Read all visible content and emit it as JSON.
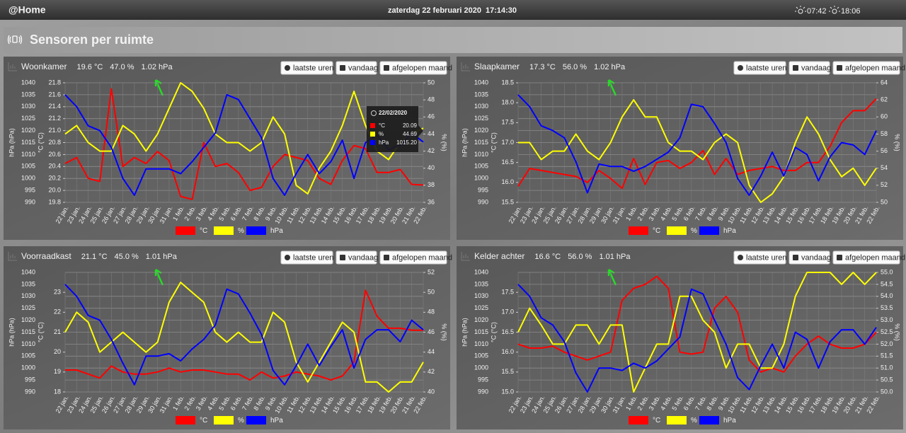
{
  "header": {
    "title": "@Home",
    "date": "zaterdag 22 februari 2020",
    "time": "17:14:30",
    "sunrise": "07:42",
    "sunset": "18:06"
  },
  "section": {
    "title": "Sensoren per ruimte"
  },
  "chart_data": [
    {
      "type": "line",
      "title": "Woonkamer",
      "readings": [
        "19.6 °C",
        "47.0 %",
        "1.02 hPa"
      ],
      "buttons": [
        "laatste uren",
        "vandaag",
        "afgelopen maand"
      ],
      "categories": [
        "22 jan.",
        "23 jan.",
        "24 jan.",
        "25 jan.",
        "26 jan.",
        "27 jan.",
        "28 jan.",
        "29 jan.",
        "30 jan.",
        "31 jan.",
        "1 feb.",
        "2 feb.",
        "3 feb.",
        "4 feb.",
        "5 feb.",
        "6 feb.",
        "7 feb.",
        "8 feb.",
        "9 feb.",
        "10 feb.",
        "11 feb.",
        "12 feb.",
        "13 feb.",
        "14 feb.",
        "15 feb.",
        "16 feb.",
        "17 feb.",
        "18 feb.",
        "19 feb.",
        "20 feb.",
        "21 feb.",
        "22 feb."
      ],
      "ylabel": "hPa (hPa)",
      "ylim": [
        990,
        1040
      ],
      "yticks": [
        990,
        995,
        1000,
        1005,
        1010,
        1015,
        1020,
        1025,
        1030,
        1035,
        1040
      ],
      "y3label": "°C (°C)",
      "y3lim": [
        19.8,
        21.8
      ],
      "y3ticks": [
        19.8,
        {
          "value": 20,
          "label": "20.0"
        },
        20.2,
        20.4,
        20.6,
        20.8,
        {
          "value": 21,
          "label": "21.0"
        },
        21.2,
        21.4,
        21.6,
        21.8
      ],
      "y2label": "% (%)",
      "y2lim": [
        36,
        50
      ],
      "y2ticks": [
        36,
        38,
        40,
        42,
        44,
        46,
        48,
        50
      ],
      "grid": true,
      "series": [
        {
          "name": "°C",
          "color": "#ff0000",
          "axis": "y3",
          "values": [
            20.45,
            20.55,
            20.2,
            20.15,
            21.7,
            20.4,
            20.55,
            20.45,
            20.65,
            20.5,
            19.9,
            19.85,
            20.8,
            20.4,
            20.45,
            20.3,
            20.0,
            20.05,
            20.4,
            20.6,
            20.55,
            20.5,
            20.2,
            20.1,
            20.5,
            20.75,
            20.7,
            20.3,
            20.3,
            20.35,
            20.1,
            20.09
          ]
        },
        {
          "name": "%",
          "color": "#ffff00",
          "axis": "y2",
          "values": [
            44,
            45,
            43,
            42,
            42,
            45,
            44,
            42,
            44,
            47,
            50,
            49,
            47,
            44,
            43,
            43,
            42,
            43,
            46,
            44,
            38,
            37,
            40,
            42,
            45,
            49,
            45,
            42,
            41,
            43,
            44,
            44.69
          ]
        },
        {
          "name": "hPa",
          "color": "#0000ff",
          "axis": "y",
          "values": [
            1035,
            1030,
            1022,
            1020,
            1013,
            1000,
            993,
            1004,
            1004,
            1004,
            1002,
            1007,
            1013,
            1019,
            1035,
            1033,
            1025,
            1017,
            1000,
            993,
            1002,
            1010,
            1002,
            1007,
            1016,
            1000,
            1015,
            1018,
            1012,
            1014,
            1019,
            1015.2
          ]
        }
      ],
      "tooltip": {
        "date": "22/02/2020",
        "rows": [
          {
            "name": "°C",
            "value": "20.09"
          },
          {
            "name": "%",
            "value": "44.69"
          },
          {
            "name": "hPa",
            "value": "1015.20"
          }
        ]
      }
    },
    {
      "type": "line",
      "title": "Slaapkamer",
      "readings": [
        "17.3 °C",
        "56.0 %",
        "1.02 hPa"
      ],
      "buttons": [
        "laatste uren",
        "vandaag",
        "afgelopen maand"
      ],
      "categories": [
        "22 jan.",
        "23 jan.",
        "24 jan.",
        "25 jan.",
        "26 jan.",
        "27 jan.",
        "28 jan.",
        "29 jan.",
        "30 jan.",
        "31 jan.",
        "1 feb.",
        "2 feb.",
        "3 feb.",
        "4 feb.",
        "5 feb.",
        "6 feb.",
        "7 feb.",
        "8 feb.",
        "9 feb.",
        "10 feb.",
        "11 feb.",
        "12 feb.",
        "13 feb.",
        "14 feb.",
        "15 feb.",
        "16 feb.",
        "17 feb.",
        "18 feb.",
        "19 feb.",
        "20 feb.",
        "21 feb.",
        "22 feb."
      ],
      "ylabel": "hPa (hPa)",
      "ylim": [
        990,
        1040
      ],
      "yticks": [
        990,
        995,
        1000,
        1005,
        1010,
        1015,
        1020,
        1025,
        1030,
        1035,
        1040
      ],
      "y3label": "°C (°C)",
      "y3lim": [
        15.5,
        18.5
      ],
      "y3ticks": [
        15.5,
        {
          "value": 16,
          "label": "16.0"
        },
        16.5,
        {
          "value": 17,
          "label": "17.0"
        },
        17.5,
        {
          "value": 18,
          "label": "18.0"
        },
        18.5
      ],
      "y2label": "% (%)",
      "y2lim": [
        50,
        64
      ],
      "y2ticks": [
        50,
        52,
        54,
        56,
        58,
        60,
        62,
        64
      ],
      "grid": true,
      "series": [
        {
          "name": "°C",
          "color": "#ff0000",
          "axis": "y3",
          "values": [
            15.9,
            16.35,
            16.3,
            16.25,
            16.2,
            16.15,
            16.0,
            16.3,
            16.1,
            15.85,
            16.6,
            15.95,
            16.5,
            16.55,
            16.35,
            16.5,
            16.8,
            16.2,
            16.6,
            16.2,
            16.3,
            16.35,
            16.4,
            16.3,
            16.3,
            16.5,
            16.5,
            16.9,
            17.5,
            17.8,
            17.8,
            18.1
          ]
        },
        {
          "name": "%",
          "color": "#ffff00",
          "axis": "y2",
          "values": [
            57,
            57,
            55,
            56,
            56,
            58,
            56,
            55,
            57,
            60,
            62,
            60,
            60,
            57,
            56,
            56,
            55,
            57,
            58,
            57,
            52,
            50,
            51,
            53,
            57,
            60,
            58,
            55,
            53,
            54,
            52,
            54
          ]
        },
        {
          "name": "hPa",
          "color": "#0000ff",
          "axis": "y",
          "values": [
            1035,
            1030,
            1022,
            1020,
            1017,
            1007,
            994,
            1006,
            1005,
            1005,
            1003,
            1005,
            1008,
            1011,
            1017,
            1031,
            1030,
            1023,
            1015,
            1000,
            993,
            1001,
            1011,
            1001,
            1013,
            1010,
            999,
            1009,
            1015,
            1014,
            1010,
            1020
          ]
        }
      ]
    },
    {
      "type": "line",
      "title": "Voorraadkast",
      "readings": [
        "21.1 °C",
        "45.0 %",
        "1.01 hPa"
      ],
      "buttons": [
        "laatste uren",
        "vandaag",
        "afgelopen maand"
      ],
      "categories": [
        "22 jan.",
        "23 jan.",
        "24 jan.",
        "25 jan.",
        "26 jan.",
        "27 jan.",
        "28 jan.",
        "29 jan.",
        "30 jan.",
        "31 jan.",
        "1 feb.",
        "2 feb.",
        "3 feb.",
        "4 feb.",
        "5 feb.",
        "6 feb.",
        "7 feb.",
        "8 feb.",
        "9 feb.",
        "10 feb.",
        "11 feb.",
        "12 feb.",
        "13 feb.",
        "14 feb.",
        "15 feb.",
        "16 feb.",
        "17 feb.",
        "18 feb.",
        "19 feb.",
        "20 feb.",
        "21 feb.",
        "22 feb."
      ],
      "ylabel": "hPa (hPa)",
      "ylim": [
        990,
        1040
      ],
      "yticks": [
        990,
        995,
        1000,
        1005,
        1010,
        1015,
        1020,
        1025,
        1030,
        1035,
        1040
      ],
      "y3label": "°C (°C)",
      "y3lim": [
        18,
        24
      ],
      "y3ticks": [
        18,
        19,
        20,
        21,
        22,
        23
      ],
      "y2label": "% (%)",
      "y2lim": [
        40,
        52
      ],
      "y2ticks": [
        40,
        42,
        44,
        46,
        48,
        50,
        52
      ],
      "grid": true,
      "series": [
        {
          "name": "°C",
          "color": "#ff0000",
          "axis": "y3",
          "values": [
            19.1,
            19.1,
            18.9,
            18.7,
            19.3,
            19.0,
            18.9,
            18.9,
            19.0,
            19.2,
            19.0,
            19.1,
            19.1,
            19.0,
            18.9,
            18.9,
            18.6,
            19.0,
            18.7,
            18.8,
            19.0,
            18.9,
            18.8,
            18.6,
            18.8,
            19.5,
            23.1,
            21.8,
            21.2,
            21.2,
            21.1,
            21.1
          ]
        },
        {
          "name": "%",
          "color": "#ffff00",
          "axis": "y2",
          "values": [
            46,
            48,
            47,
            44,
            45,
            46,
            45,
            44,
            45,
            49,
            51,
            50,
            49,
            46,
            45,
            46,
            45,
            45,
            48,
            47,
            43,
            41,
            43,
            45,
            47,
            46,
            41,
            41,
            40,
            41,
            41,
            43
          ]
        },
        {
          "name": "hPa",
          "color": "#0000ff",
          "axis": "y",
          "values": [
            1035,
            1030,
            1022,
            1020,
            1012,
            1002,
            993,
            1005,
            1005,
            1006,
            1003,
            1008,
            1012,
            1018,
            1033,
            1031,
            1023,
            1014,
            999,
            993,
            1001,
            1010,
            1001,
            1009,
            1016,
            1000,
            1012,
            1016,
            1016,
            1011,
            1020,
            1016
          ]
        }
      ]
    },
    {
      "type": "line",
      "title": "Kelder achter",
      "readings": [
        "16.6 °C",
        "56.0 %",
        "1.01 hPa"
      ],
      "buttons": [
        "laatste uren",
        "vandaag",
        "afgelopen maand"
      ],
      "categories": [
        "22 jan.",
        "23 jan.",
        "24 jan.",
        "25 jan.",
        "26 jan.",
        "27 jan.",
        "28 jan.",
        "29 jan.",
        "30 jan.",
        "31 jan.",
        "1 feb.",
        "2 feb.",
        "3 feb.",
        "4 feb.",
        "5 feb.",
        "6 feb.",
        "7 feb.",
        "8 feb.",
        "9 feb.",
        "10 feb.",
        "11 feb.",
        "12 feb.",
        "13 feb.",
        "14 feb.",
        "15 feb.",
        "16 feb.",
        "17 feb.",
        "18 feb.",
        "19 feb.",
        "20 feb.",
        "21 feb.",
        "22 feb."
      ],
      "ylabel": "hPa (hPa)",
      "ylim": [
        990,
        1040
      ],
      "yticks": [
        990,
        995,
        1000,
        1005,
        1010,
        1015,
        1020,
        1025,
        1030,
        1035,
        1040
      ],
      "y3label": "°C (°C)",
      "y3lim": [
        15,
        18
      ],
      "y3ticks": [
        {
          "value": 15,
          "label": "15.0"
        },
        15.5,
        {
          "value": 16,
          "label": "16.0"
        },
        16.5,
        {
          "value": 17,
          "label": "17.0"
        },
        17.5
      ],
      "y2label": "% (%)",
      "y2lim": [
        50,
        55
      ],
      "y2ticks": [
        {
          "value": 50,
          "label": "50.0"
        },
        50.5,
        {
          "value": 51,
          "label": "51.0"
        },
        51.5,
        {
          "value": 52,
          "label": "52.0"
        },
        52.5,
        {
          "value": 53,
          "label": "53.0"
        },
        53.5,
        {
          "value": 54,
          "label": "54.0"
        },
        54.5,
        {
          "value": 55,
          "label": "55.0"
        }
      ],
      "grid": true,
      "series": [
        {
          "name": "°C",
          "color": "#ff0000",
          "axis": "y3",
          "values": [
            16.2,
            16.1,
            16.1,
            16.15,
            16.0,
            15.9,
            15.8,
            15.9,
            16.0,
            17.3,
            17.6,
            17.7,
            17.9,
            17.6,
            16.0,
            15.95,
            16.0,
            17.1,
            17.4,
            17.0,
            15.8,
            15.5,
            15.6,
            15.5,
            15.9,
            16.2,
            16.4,
            16.2,
            16.1,
            16.1,
            16.2,
            16.5
          ]
        },
        {
          "name": "%",
          "color": "#ffff00",
          "axis": "y2",
          "values": [
            52.5,
            53.5,
            52.8,
            52.0,
            52.0,
            52.8,
            52.8,
            52.0,
            52.8,
            52.8,
            50.0,
            51.0,
            52.0,
            52.0,
            54.0,
            54.0,
            53.0,
            52.5,
            51.0,
            52.0,
            52.0,
            51.0,
            51.0,
            52.0,
            54.0,
            55.0,
            55.0,
            55.0,
            54.5,
            55.0,
            54.5,
            55.0
          ]
        },
        {
          "name": "hPa",
          "color": "#0000ff",
          "axis": "y",
          "values": [
            1035,
            1030,
            1021,
            1018,
            1011,
            998,
            990,
            1000,
            1000,
            999,
            1002,
            1000,
            1003,
            1008,
            1013,
            1033,
            1031,
            1020,
            1010,
            996,
            991,
            1001,
            1010,
            1000,
            1015,
            1012,
            1000,
            1011,
            1016,
            1016,
            1010,
            1017
          ]
        }
      ]
    }
  ]
}
